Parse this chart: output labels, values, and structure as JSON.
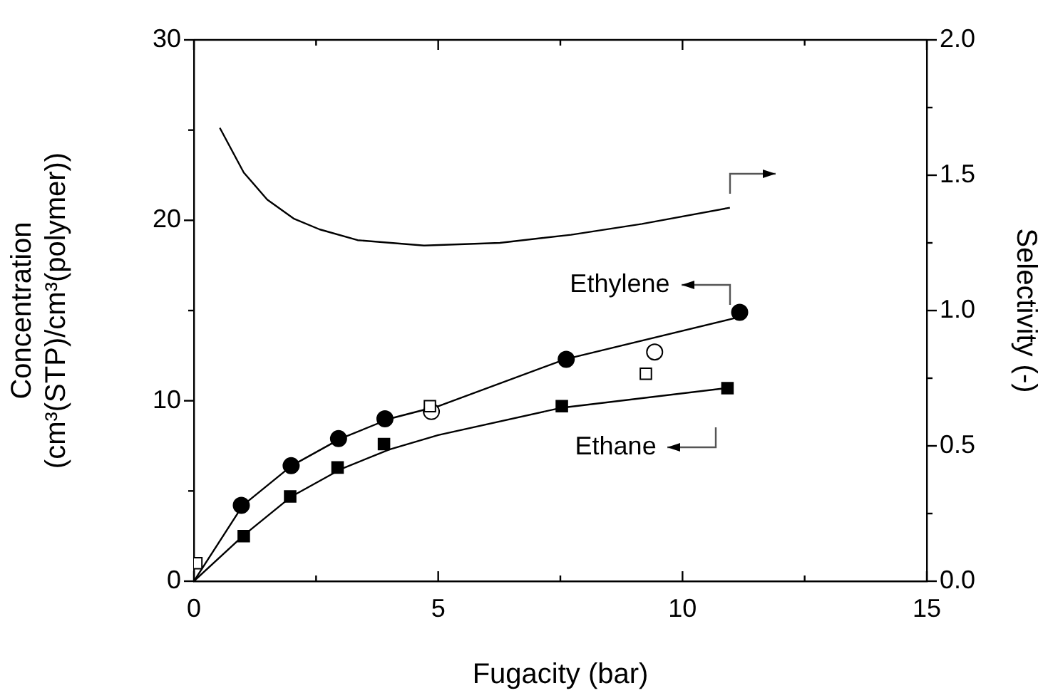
{
  "chart_data": {
    "type": "scatter",
    "xlabel": "Fugacity (bar)",
    "ylabel": "Concentration\n(cm³(STP)/cm³(polymer))",
    "y2label": "Selectivity (-)",
    "xlim": [
      0,
      15
    ],
    "xticks": [
      0,
      {
        "value": 2.5,
        "label": null
      },
      5,
      {
        "value": 7.5,
        "label": null
      },
      10,
      {
        "value": 12.5,
        "label": null
      },
      15
    ],
    "ylim": [
      0,
      30
    ],
    "yticks": [
      0,
      {
        "value": 5,
        "label": null
      },
      10,
      {
        "value": 15,
        "label": null
      },
      20,
      {
        "value": 25,
        "label": null
      },
      30
    ],
    "y2lim": [
      0,
      2
    ],
    "y2ticks": [
      {
        "value": 0,
        "label": "0.0"
      },
      {
        "value": 0.25,
        "label": null
      },
      {
        "value": 0.5,
        "label": "0.5"
      },
      {
        "value": 0.75,
        "label": null
      },
      {
        "value": 1,
        "label": "1.0"
      },
      {
        "value": 1.25,
        "label": null
      },
      {
        "value": 1.5,
        "label": "1.5"
      },
      {
        "value": 1.75,
        "label": null
      },
      {
        "value": 2,
        "label": "2.0"
      }
    ],
    "grid": false,
    "legend": false,
    "series": [
      {
        "type": "line",
        "color": "#000000",
        "marker": "none",
        "x": [
          0,
          1,
          2,
          3,
          4,
          5,
          7.6,
          11.1
        ],
        "values": [
          0,
          4.2,
          6.4,
          7.9,
          9.0,
          9.7,
          12.3,
          14.6
        ]
      },
      {
        "type": "line",
        "color": "#000000",
        "marker": "none",
        "x": [
          0,
          1,
          2,
          3,
          4,
          5,
          7.5,
          10.9
        ],
        "values": [
          0,
          2.5,
          4.7,
          6.2,
          7.3,
          8.1,
          9.6,
          10.7
        ]
      },
      {
        "type": "line",
        "color": "#000000",
        "marker": "none",
        "axis": "y2",
        "x": [
          0.53,
          1.02,
          1.5,
          2.04,
          2.57,
          3.35,
          4.71,
          6.26,
          7.72,
          9.17,
          10.97
        ],
        "values": [
          1.675,
          1.51,
          1.41,
          1.34,
          1.3,
          1.26,
          1.24,
          1.25,
          1.28,
          1.32,
          1.38
        ]
      },
      {
        "type": "scatter",
        "color": "#000000",
        "marker": "circle",
        "x": [
          0.97,
          1.99,
          2.96,
          3.91,
          7.62,
          11.17
        ],
        "values": [
          4.2,
          6.4,
          7.9,
          9.0,
          12.3,
          14.9
        ]
      },
      {
        "type": "scatter",
        "color": "#000000",
        "marker": "square",
        "x": [
          1.02,
          1.97,
          2.94,
          3.89,
          7.53,
          10.92
        ],
        "values": [
          2.5,
          4.7,
          6.3,
          7.6,
          9.7,
          10.7
        ]
      },
      {
        "type": "scatter",
        "color": "#ffffff",
        "marker": "circle",
        "x": [
          4.86,
          9.43
        ],
        "values": [
          9.4,
          12.7
        ]
      },
      {
        "type": "scatter",
        "color": "#ffffff",
        "marker": "square",
        "x": [
          0.05,
          4.83,
          9.25
        ],
        "values": [
          1.0,
          9.7,
          11.5
        ]
      }
    ],
    "annotations": [
      "Ethylene",
      "Ethane"
    ]
  }
}
